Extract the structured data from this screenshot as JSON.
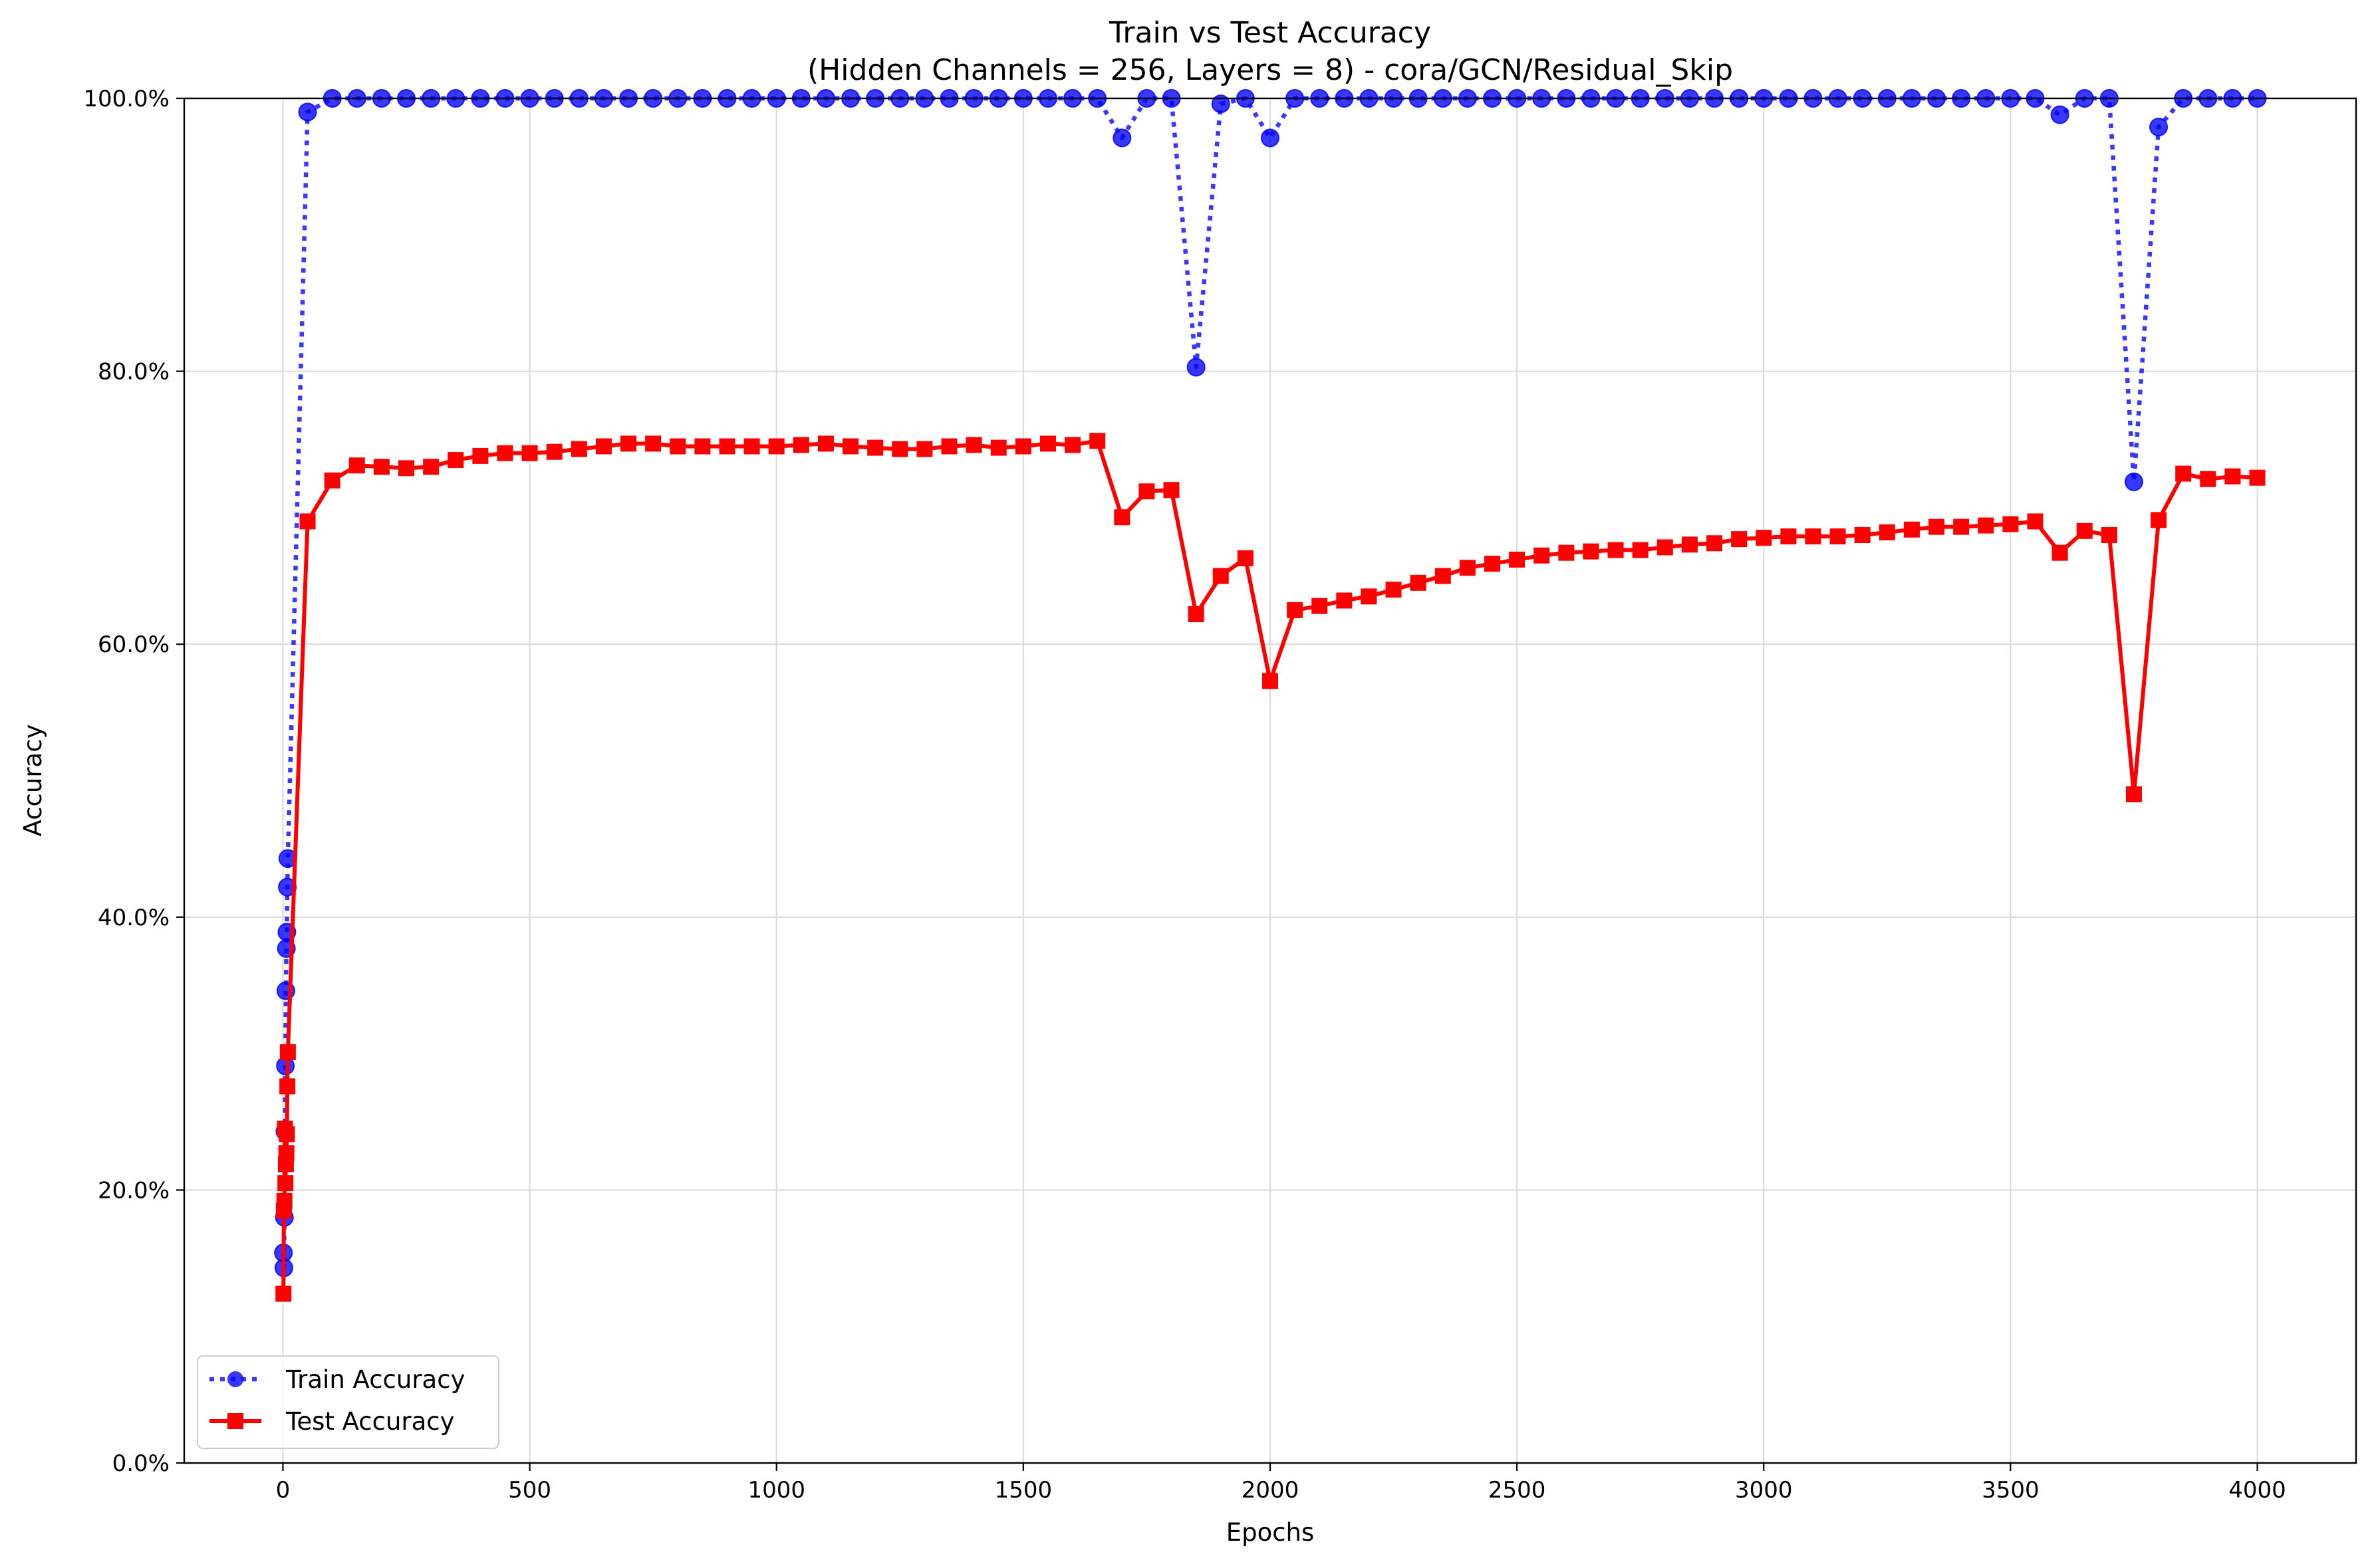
{
  "chart_data": {
    "type": "line",
    "title": "Train vs Test Accuracy",
    "subtitle": "(Hidden Channels = 256, Layers = 8) - cora/GCN/Residual_Skip",
    "xlabel": "Epochs",
    "ylabel": "Accuracy",
    "xlim": [
      -200,
      4200
    ],
    "ylim": [
      0,
      100
    ],
    "x_ticks": [
      0,
      500,
      1000,
      1500,
      2000,
      2500,
      3000,
      3500,
      4000
    ],
    "x_tick_labels": [
      "0",
      "500",
      "1000",
      "1500",
      "2000",
      "2500",
      "3000",
      "3500",
      "4000"
    ],
    "y_ticks": [
      0,
      20,
      40,
      60,
      80,
      100
    ],
    "y_tick_labels": [
      "0.0%",
      "20.0%",
      "40.0%",
      "60.0%",
      "80.0%",
      "100.0%"
    ],
    "grid": true,
    "legend_position": "lower-left",
    "x": [
      1,
      2,
      3,
      4,
      5,
      6,
      7,
      8,
      9,
      10,
      50,
      100,
      150,
      200,
      250,
      300,
      350,
      400,
      450,
      500,
      550,
      600,
      650,
      700,
      750,
      800,
      850,
      900,
      950,
      1000,
      1050,
      1100,
      1150,
      1200,
      1250,
      1300,
      1350,
      1400,
      1450,
      1500,
      1550,
      1600,
      1650,
      1700,
      1750,
      1800,
      1850,
      1900,
      1950,
      2000,
      2050,
      2100,
      2150,
      2200,
      2250,
      2300,
      2350,
      2400,
      2450,
      2500,
      2550,
      2600,
      2650,
      2700,
      2750,
      2800,
      2850,
      2900,
      2950,
      3000,
      3050,
      3100,
      3150,
      3200,
      3250,
      3300,
      3350,
      3400,
      3450,
      3500,
      3550,
      3600,
      3650,
      3700,
      3750,
      3800,
      3850,
      3900,
      3950,
      4000
    ],
    "series": [
      {
        "name": "Train Accuracy",
        "color": "#0000ff",
        "line_style": "dotted",
        "marker": "circle",
        "values": [
          15.4,
          14.3,
          18.0,
          24.3,
          29.1,
          34.6,
          37.7,
          38.9,
          42.2,
          44.3,
          99.0,
          100,
          100,
          100,
          100,
          100,
          100,
          100,
          100,
          100,
          100,
          100,
          100,
          100,
          100,
          100,
          100,
          100,
          100,
          100,
          100,
          100,
          100,
          100,
          100,
          100,
          100,
          100,
          100,
          100,
          100,
          100,
          100,
          97.1,
          100,
          100,
          80.3,
          99.6,
          100,
          97.1,
          100,
          100,
          100,
          100,
          100,
          100,
          100,
          100,
          100,
          100,
          100,
          100,
          100,
          100,
          100,
          100,
          100,
          100,
          100,
          100,
          100,
          100,
          100,
          100,
          100,
          100,
          100,
          100,
          100,
          100,
          100,
          98.8,
          100,
          100,
          71.9,
          97.9,
          100,
          100,
          100,
          100
        ]
      },
      {
        "name": "Test Accuracy",
        "color": "#ff0000",
        "line_style": "solid",
        "marker": "square",
        "values": [
          12.4,
          18.5,
          19.2,
          24.5,
          20.5,
          21.9,
          22.7,
          24.1,
          27.6,
          30.1,
          69.0,
          72.0,
          73.1,
          73.0,
          72.9,
          73.0,
          73.5,
          73.8,
          74.0,
          74.0,
          74.1,
          74.3,
          74.5,
          74.7,
          74.7,
          74.5,
          74.5,
          74.5,
          74.5,
          74.5,
          74.6,
          74.7,
          74.5,
          74.4,
          74.3,
          74.3,
          74.5,
          74.6,
          74.4,
          74.5,
          74.7,
          74.6,
          74.9,
          69.3,
          71.2,
          71.3,
          62.2,
          65.0,
          66.3,
          57.3,
          62.5,
          62.8,
          63.2,
          63.5,
          64.0,
          64.5,
          65.0,
          65.6,
          65.9,
          66.2,
          66.5,
          66.7,
          66.8,
          66.9,
          66.9,
          67.1,
          67.3,
          67.4,
          67.7,
          67.8,
          67.9,
          67.9,
          67.9,
          68.0,
          68.2,
          68.4,
          68.6,
          68.6,
          68.7,
          68.8,
          69.0,
          66.7,
          68.3,
          68.0,
          49.0,
          69.1,
          72.5,
          72.1,
          72.3,
          72.2
        ]
      }
    ]
  }
}
